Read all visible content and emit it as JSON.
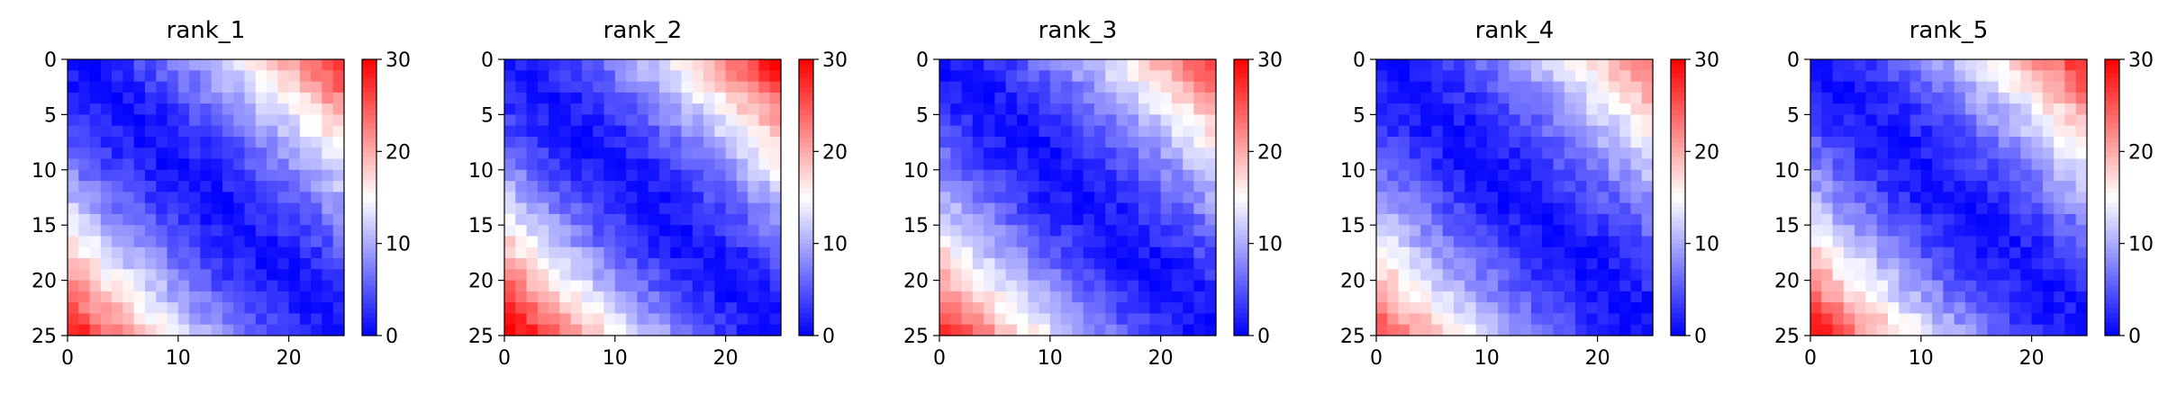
{
  "chart_data": [
    {
      "type": "heatmap",
      "title": "rank_1",
      "size": 25,
      "xticks": [
        0,
        10,
        20
      ],
      "yticks": [
        0,
        5,
        10,
        15,
        20,
        25
      ],
      "colorbar": {
        "min": 0,
        "max": 30,
        "ticks": [
          0,
          10,
          20,
          30
        ],
        "colormap": "bwr"
      },
      "corner_max": 26,
      "corner_bias": 1.0
    },
    {
      "type": "heatmap",
      "title": "rank_2",
      "size": 25,
      "xticks": [
        0,
        10,
        20
      ],
      "yticks": [
        0,
        5,
        10,
        15,
        20,
        25
      ],
      "colorbar": {
        "min": 0,
        "max": 30,
        "ticks": [
          0,
          10,
          20,
          30
        ],
        "colormap": "bwr"
      },
      "corner_max": 27,
      "corner_bias": 1.05
    },
    {
      "type": "heatmap",
      "title": "rank_3",
      "size": 25,
      "xticks": [
        0,
        10,
        20
      ],
      "yticks": [
        0,
        5,
        10,
        15,
        20,
        25
      ],
      "colorbar": {
        "min": 0,
        "max": 30,
        "ticks": [
          0,
          10,
          20,
          30
        ],
        "colormap": "bwr"
      },
      "corner_max": 25,
      "corner_bias": 1.0
    },
    {
      "type": "heatmap",
      "title": "rank_4",
      "size": 25,
      "xticks": [
        0,
        10,
        20
      ],
      "yticks": [
        0,
        5,
        10,
        15,
        20,
        25
      ],
      "colorbar": {
        "min": 0,
        "max": 30,
        "ticks": [
          0,
          10,
          20,
          30
        ],
        "colormap": "bwr"
      },
      "corner_max": 24,
      "corner_bias": 0.95
    },
    {
      "type": "heatmap",
      "title": "rank_5",
      "size": 25,
      "xticks": [
        0,
        10,
        20
      ],
      "yticks": [
        0,
        5,
        10,
        15,
        20,
        25
      ],
      "colorbar": {
        "min": 0,
        "max": 30,
        "ticks": [
          0,
          10,
          20,
          30
        ],
        "colormap": "bwr"
      },
      "corner_max": 26,
      "corner_bias": 1.0
    }
  ]
}
